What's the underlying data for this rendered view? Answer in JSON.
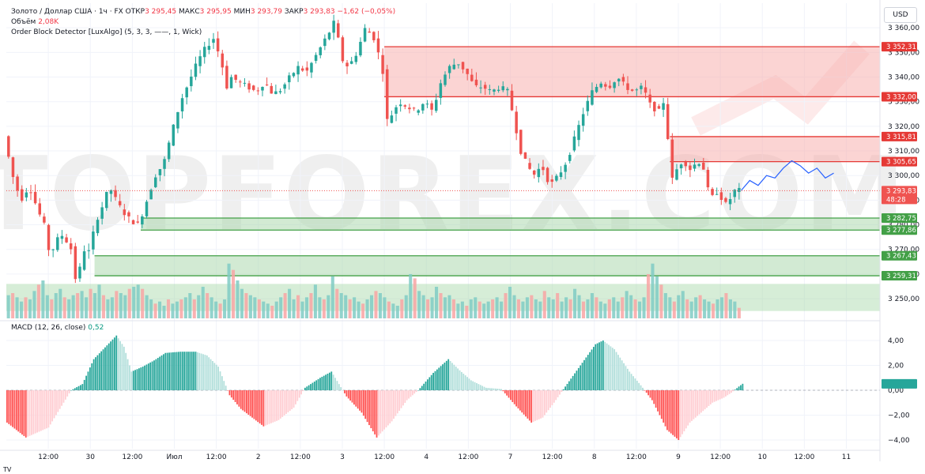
{
  "header": {
    "symbol": "Золото / Доллар США · 1ч · FX",
    "open_label": "ОТКР",
    "open_value": "3 295,45",
    "high_label": "МАКС",
    "high_value": "3 295,95",
    "low_label": "МИН",
    "low_value": "3 293,79",
    "close_label": "ЗАКР",
    "close_value": "3 293,83",
    "change": "−1,62 (−0,05%)",
    "volume_label": "Объём",
    "volume_value": "2,08K",
    "indicator": "Order Block Detector [LuxAlgo] (5, 3, 3, ——, 1, Wick)"
  },
  "currency_button": "USD",
  "watermark": "TOPFOREX.COM",
  "macd_panel": {
    "title": "MACD (12, 26, close)",
    "value": "0,52"
  },
  "footer": "TV",
  "colors": {
    "up": "#26a69a",
    "down": "#ef5350",
    "bearish_zone": "#f7a9a8",
    "bullish_zone": "#a5d6a7",
    "forecast": "#2962ff",
    "macd_up_strong": "#26a69a",
    "macd_up_weak": "#b2dfdb",
    "macd_down_strong": "#ff5252",
    "macd_down_weak": "#ffcdd2"
  },
  "chart_data": {
    "type": "candlestick",
    "y_range": [
      3242,
      3370
    ],
    "y_ticks": [
      "3 250,00",
      "3 260,00",
      "3 270,00",
      "3 280,00",
      "3 290,00",
      "3 300,00",
      "3 310,00",
      "3 320,00",
      "3 330,00",
      "3 340,00",
      "3 350,00",
      "3 360,00"
    ],
    "x_labels": [
      {
        "label": "12:00",
        "x": 0.5
      },
      {
        "label": "30",
        "x": 1.0
      },
      {
        "label": "12:00",
        "x": 1.5
      },
      {
        "label": "Июл",
        "x": 2.0
      },
      {
        "label": "12:00",
        "x": 2.5
      },
      {
        "label": "2",
        "x": 3.0
      },
      {
        "label": "12:00",
        "x": 3.5
      },
      {
        "label": "3",
        "x": 4.0
      },
      {
        "label": "12:00",
        "x": 4.5
      },
      {
        "label": "4",
        "x": 5.0
      },
      {
        "label": "12:00",
        "x": 5.5
      },
      {
        "label": "7",
        "x": 6.0
      },
      {
        "label": "12:00",
        "x": 6.5
      },
      {
        "label": "8",
        "x": 7.0
      },
      {
        "label": "12:00",
        "x": 7.5
      },
      {
        "label": "9",
        "x": 8.0
      },
      {
        "label": "12:00",
        "x": 8.5
      },
      {
        "label": "10",
        "x": 9.0
      },
      {
        "label": "12:00",
        "x": 9.5
      },
      {
        "label": "11",
        "x": 10.0
      }
    ],
    "x_range": [
      0.0,
      10.4
    ],
    "price_path": [
      [
        0.0,
        3316
      ],
      [
        0.1,
        3300
      ],
      [
        0.2,
        3290
      ],
      [
        0.3,
        3296
      ],
      [
        0.4,
        3286
      ],
      [
        0.5,
        3278
      ],
      [
        0.55,
        3265
      ],
      [
        0.6,
        3273
      ],
      [
        0.7,
        3276
      ],
      [
        0.8,
        3270
      ],
      [
        0.85,
        3258
      ],
      [
        0.9,
        3262
      ],
      [
        0.95,
        3270
      ],
      [
        1.0,
        3268
      ],
      [
        1.1,
        3282
      ],
      [
        1.2,
        3290
      ],
      [
        1.25,
        3296
      ],
      [
        1.3,
        3292
      ],
      [
        1.4,
        3286
      ],
      [
        1.5,
        3282
      ],
      [
        1.6,
        3280
      ],
      [
        1.7,
        3290
      ],
      [
        1.8,
        3300
      ],
      [
        1.9,
        3305
      ],
      [
        2.0,
        3318
      ],
      [
        2.1,
        3330
      ],
      [
        2.2,
        3338
      ],
      [
        2.3,
        3346
      ],
      [
        2.4,
        3352
      ],
      [
        2.5,
        3356
      ],
      [
        2.6,
        3344
      ],
      [
        2.65,
        3336
      ],
      [
        2.7,
        3340
      ],
      [
        2.8,
        3338
      ],
      [
        2.9,
        3336
      ],
      [
        3.0,
        3334
      ],
      [
        3.1,
        3338
      ],
      [
        3.2,
        3333
      ],
      [
        3.3,
        3335
      ],
      [
        3.4,
        3340
      ],
      [
        3.5,
        3344
      ],
      [
        3.6,
        3342
      ],
      [
        3.7,
        3348
      ],
      [
        3.8,
        3354
      ],
      [
        3.9,
        3360
      ],
      [
        3.95,
        3364
      ],
      [
        4.0,
        3348
      ],
      [
        4.1,
        3344
      ],
      [
        4.2,
        3350
      ],
      [
        4.3,
        3360
      ],
      [
        4.4,
        3356
      ],
      [
        4.45,
        3350
      ],
      [
        4.5,
        3346
      ],
      [
        4.55,
        3322
      ],
      [
        4.6,
        3324
      ],
      [
        4.7,
        3330
      ],
      [
        4.8,
        3328
      ],
      [
        4.9,
        3326
      ],
      [
        5.0,
        3330
      ],
      [
        5.1,
        3326
      ],
      [
        5.2,
        3338
      ],
      [
        5.3,
        3344
      ],
      [
        5.4,
        3346
      ],
      [
        5.5,
        3342
      ],
      [
        5.6,
        3336
      ],
      [
        5.7,
        3336
      ],
      [
        5.8,
        3334
      ],
      [
        5.9,
        3336
      ],
      [
        6.0,
        3334
      ],
      [
        6.05,
        3326
      ],
      [
        6.1,
        3318
      ],
      [
        6.15,
        3310
      ],
      [
        6.2,
        3306
      ],
      [
        6.3,
        3300
      ],
      [
        6.4,
        3304
      ],
      [
        6.5,
        3296
      ],
      [
        6.6,
        3300
      ],
      [
        6.7,
        3306
      ],
      [
        6.8,
        3316
      ],
      [
        6.9,
        3326
      ],
      [
        7.0,
        3334
      ],
      [
        7.1,
        3338
      ],
      [
        7.2,
        3336
      ],
      [
        7.3,
        3340
      ],
      [
        7.4,
        3336
      ],
      [
        7.5,
        3334
      ],
      [
        7.6,
        3336
      ],
      [
        7.7,
        3328
      ],
      [
        7.8,
        3326
      ],
      [
        7.85,
        3330
      ],
      [
        7.9,
        3316
      ],
      [
        7.95,
        3298
      ],
      [
        8.0,
        3302
      ],
      [
        8.05,
        3305
      ],
      [
        8.1,
        3306
      ],
      [
        8.15,
        3302
      ],
      [
        8.2,
        3304
      ],
      [
        8.3,
        3306
      ],
      [
        8.35,
        3300
      ],
      [
        8.4,
        3290
      ],
      [
        8.5,
        3294
      ],
      [
        8.55,
        3290
      ],
      [
        8.6,
        3288
      ],
      [
        8.7,
        3294
      ],
      [
        8.75,
        3294
      ]
    ],
    "forecast_path": [
      [
        8.75,
        3294
      ],
      [
        8.85,
        3298
      ],
      [
        8.95,
        3296
      ],
      [
        9.05,
        3300
      ],
      [
        9.15,
        3299
      ],
      [
        9.25,
        3303
      ],
      [
        9.35,
        3306
      ],
      [
        9.45,
        3304
      ],
      [
        9.55,
        3301
      ],
      [
        9.65,
        3303
      ],
      [
        9.75,
        3299
      ],
      [
        9.85,
        3301
      ]
    ],
    "order_blocks": [
      {
        "type": "bearish",
        "from": 4.5,
        "to": 10.4,
        "top": 3352.31,
        "bottom": 3332.0,
        "label_top": "3 352,31",
        "label_bottom": "3 332,00"
      },
      {
        "type": "bearish",
        "from": 7.9,
        "to": 10.4,
        "top": 3315.81,
        "bottom": 3305.65,
        "label_top": "3 315,81",
        "label_bottom": "3 305,65"
      },
      {
        "type": "bullish",
        "from": 1.6,
        "to": 10.4,
        "top": 3282.75,
        "bottom": 3277.86,
        "label_top": "3 282,75",
        "label_bottom": "3 277,86"
      },
      {
        "type": "bullish",
        "from": 1.05,
        "to": 10.4,
        "top": 3267.43,
        "bottom": 3259.31,
        "label_top": "3 267,43",
        "label_bottom": "3 259,31"
      }
    ],
    "current_price": {
      "value": 3293.83,
      "label": "3 293,83",
      "countdown": "48:28"
    },
    "volume_zone": {
      "top": 3256,
      "bottom": 3245
    },
    "volume_range": [
      0,
      3.0
    ],
    "volume_values": [
      1.1,
      1.2,
      1.0,
      0.8,
      1.0,
      0.9,
      1.3,
      1.6,
      1.8,
      1.1,
      0.9,
      1.2,
      1.4,
      1.0,
      0.9,
      1.1,
      1.2,
      1.3,
      1.0,
      1.4,
      1.2,
      1.6,
      1.1,
      0.9,
      1.0,
      1.3,
      1.2,
      1.1,
      1.4,
      1.5,
      1.6,
      1.4,
      1.1,
      0.9,
      0.7,
      0.8,
      0.6,
      0.9,
      0.7,
      0.8,
      0.9,
      1.0,
      1.2,
      0.9,
      1.1,
      1.5,
      1.2,
      1.0,
      0.8,
      0.7,
      0.9,
      2.6,
      2.3,
      1.8,
      1.4,
      1.2,
      1.1,
      1.0,
      0.9,
      0.8,
      0.7,
      0.6,
      0.8,
      1.0,
      1.2,
      1.4,
      0.9,
      1.1,
      0.8,
      1.0,
      1.2,
      1.6,
      1.0,
      0.9,
      1.1,
      2.0,
      1.4,
      1.2,
      1.1,
      0.9,
      1.0,
      0.8,
      0.7,
      0.9,
      1.1,
      1.3,
      1.2,
      1.0,
      0.8,
      0.7,
      0.6,
      0.9,
      1.1,
      2.1,
      1.9,
      1.3,
      1.1,
      0.9,
      1.0,
      1.5,
      1.2,
      1.0,
      1.1,
      0.9,
      0.7,
      0.8,
      0.6,
      0.9,
      1.0,
      0.8,
      0.7,
      0.8,
      0.9,
      1.0,
      0.8,
      1.2,
      1.5,
      1.1,
      0.9,
      0.8,
      1.0,
      1.1,
      0.9,
      0.8,
      1.3,
      1.0,
      0.9,
      1.2,
      0.8,
      1.0,
      0.9,
      1.4,
      1.1,
      0.8,
      0.9,
      1.2,
      1.0,
      0.8,
      0.7,
      0.9,
      1.0,
      0.8,
      1.0,
      1.3,
      1.1,
      0.9,
      0.8,
      1.0,
      2.1,
      2.6,
      2.0,
      1.6,
      1.2,
      1.0,
      0.8,
      1.1,
      1.3,
      0.9,
      0.8,
      1.0,
      1.1,
      0.9,
      0.8,
      0.7,
      0.9,
      1.0,
      1.2,
      0.9,
      0.8,
      0.5
    ],
    "macd": {
      "range": [
        -4.7,
        4.7
      ],
      "ticks": [
        "4,00",
        "2,00",
        "0,00",
        "−2,00",
        "−4,00"
      ],
      "tick_values": [
        4,
        2,
        0,
        -2,
        -4
      ],
      "keypoints": [
        [
          0,
          -2.6
        ],
        [
          10,
          -3.8
        ],
        [
          22,
          -3.0
        ],
        [
          30,
          -1.0
        ],
        [
          34,
          0.0
        ],
        [
          40,
          0.5
        ],
        [
          46,
          2.5
        ],
        [
          58,
          4.4
        ],
        [
          62,
          3.5
        ],
        [
          66,
          1.5
        ],
        [
          72,
          1.9
        ],
        [
          78,
          2.4
        ],
        [
          84,
          3.0
        ],
        [
          92,
          3.1
        ],
        [
          100,
          3.1
        ],
        [
          106,
          2.8
        ],
        [
          112,
          1.9
        ],
        [
          118,
          -0.4
        ],
        [
          124,
          -1.5
        ],
        [
          136,
          -2.9
        ],
        [
          144,
          -2.4
        ],
        [
          152,
          -1.4
        ],
        [
          158,
          0.2
        ],
        [
          166,
          1.0
        ],
        [
          172,
          1.5
        ],
        [
          176,
          0.5
        ],
        [
          180,
          -0.5
        ],
        [
          188,
          -1.8
        ],
        [
          196,
          -3.8
        ],
        [
          204,
          -2.5
        ],
        [
          212,
          -0.8
        ],
        [
          218,
          0.0
        ],
        [
          226,
          1.4
        ],
        [
          234,
          2.5
        ],
        [
          240,
          1.6
        ],
        [
          246,
          0.8
        ],
        [
          254,
          0.2
        ],
        [
          262,
          0.1
        ],
        [
          270,
          -1.3
        ],
        [
          278,
          -2.6
        ],
        [
          284,
          -2.2
        ],
        [
          290,
          -1.0
        ],
        [
          296,
          0.3
        ],
        [
          304,
          2.0
        ],
        [
          312,
          3.7
        ],
        [
          316,
          4.0
        ],
        [
          322,
          3.3
        ],
        [
          330,
          1.5
        ],
        [
          336,
          0.4
        ],
        [
          342,
          -0.8
        ],
        [
          346,
          -2.0
        ],
        [
          350,
          -3.2
        ],
        [
          356,
          -4.0
        ],
        [
          362,
          -2.6
        ],
        [
          368,
          -1.8
        ],
        [
          374,
          -1.0
        ],
        [
          380,
          -0.6
        ],
        [
          384,
          -0.2
        ],
        [
          388,
          0.3
        ],
        [
          390,
          0.52
        ]
      ]
    }
  }
}
